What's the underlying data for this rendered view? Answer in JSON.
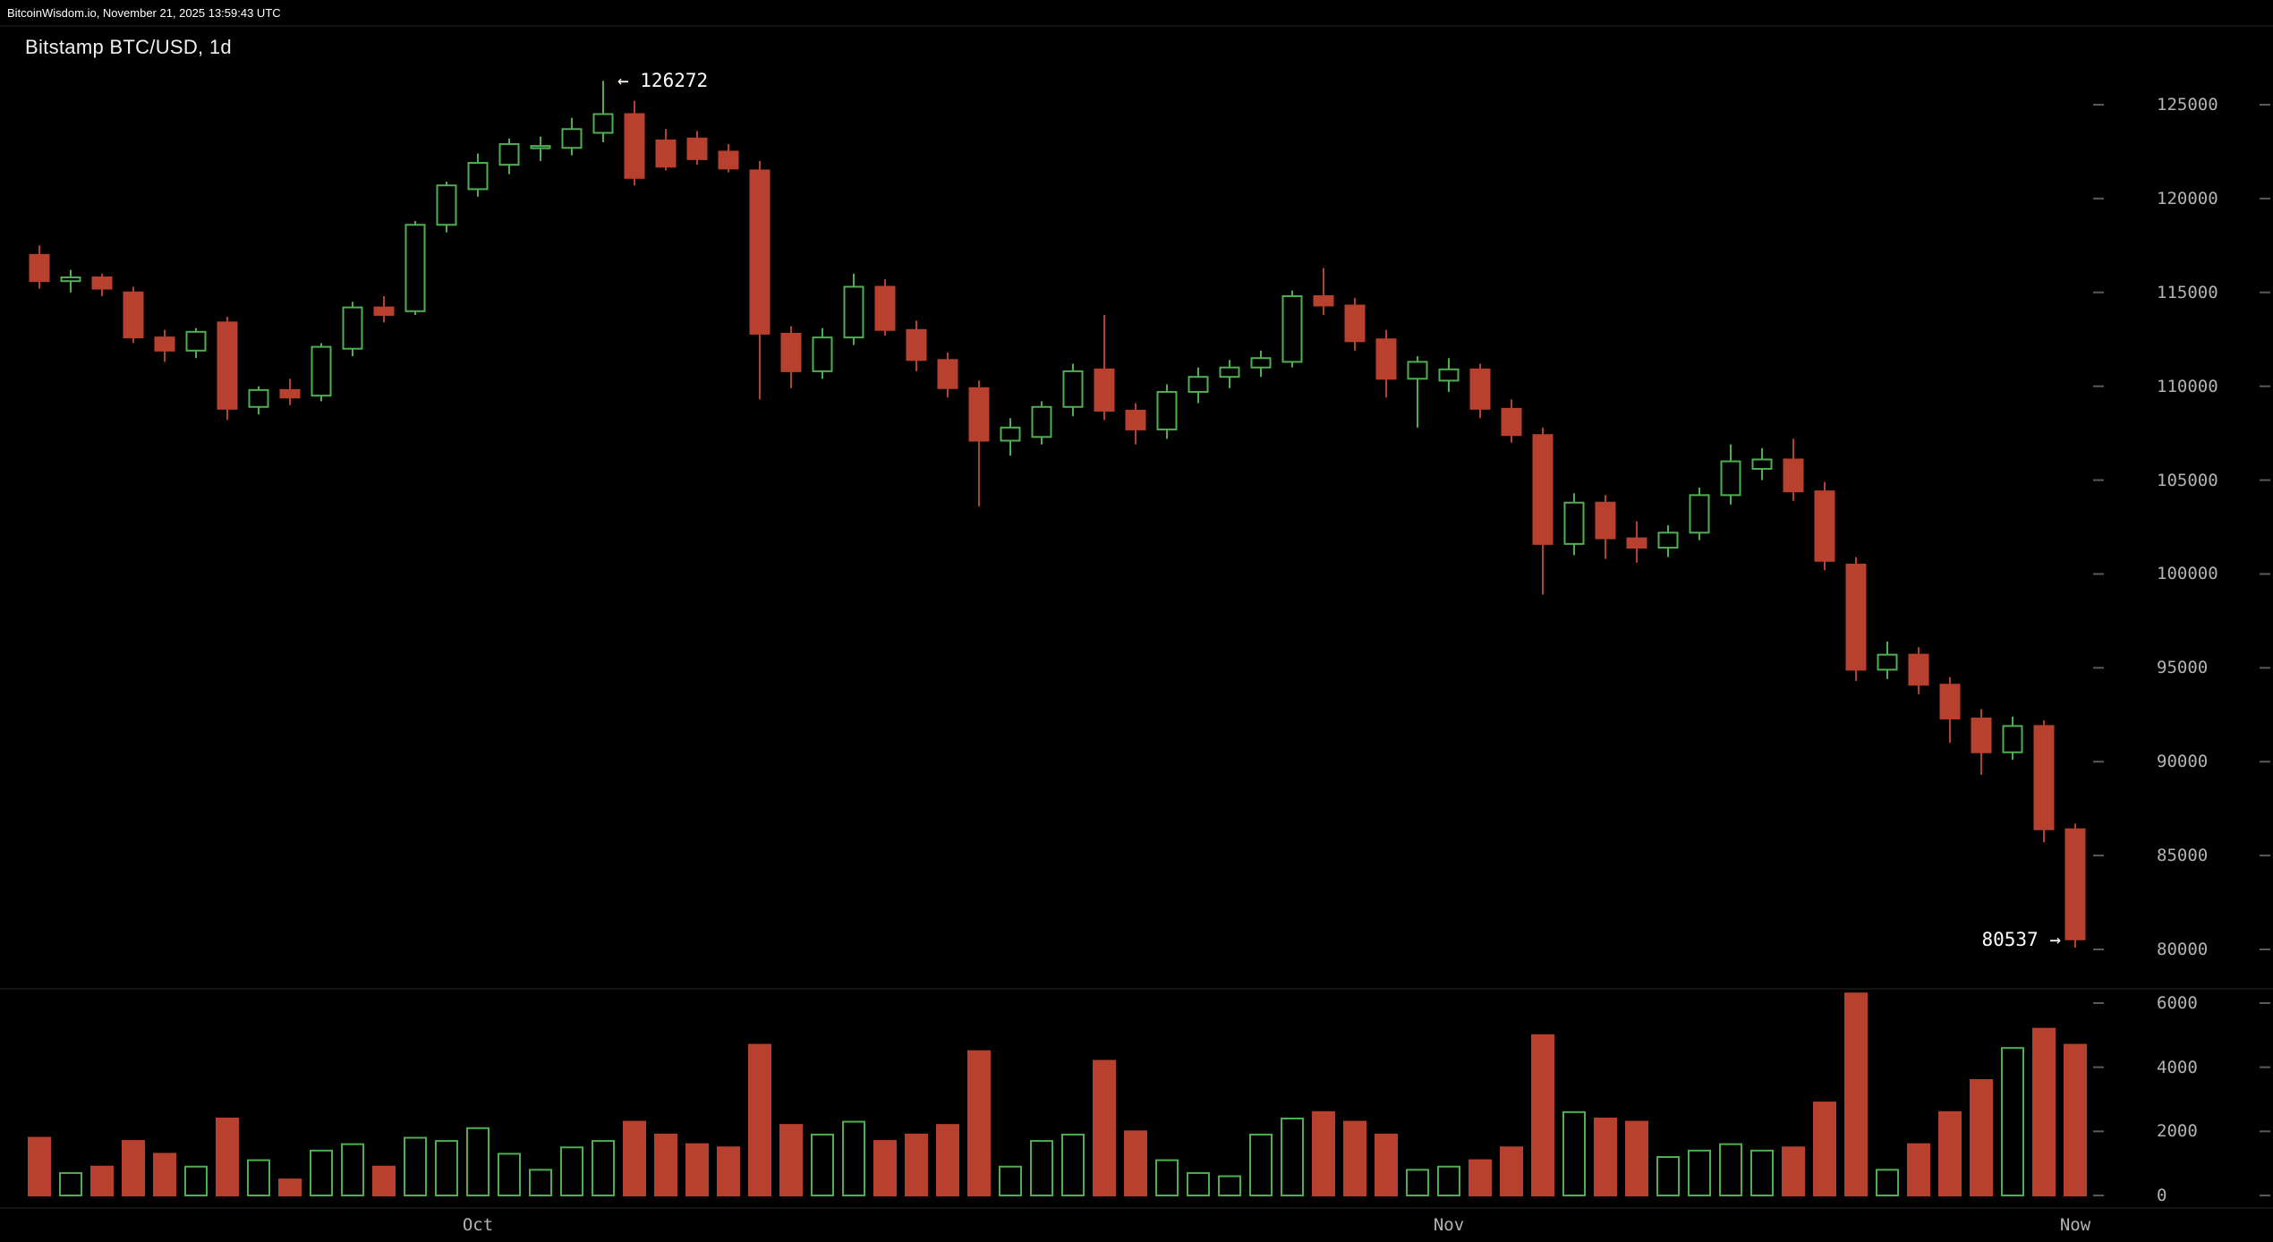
{
  "header": {
    "status_text": "BitcoinWisdom.io, November 21, 2025 13:59:43 UTC"
  },
  "chart_data": {
    "type": "candlestick",
    "title": "Bitstamp BTC/USD, 1d",
    "legend": "none",
    "grid": "off",
    "price_axis": {
      "side": "right",
      "ticks": [
        125000,
        120000,
        115000,
        110000,
        105000,
        100000,
        95000,
        90000,
        85000,
        80000
      ],
      "range": [
        78500,
        127800
      ]
    },
    "volume_axis": {
      "side": "right",
      "ticks": [
        6000,
        4000,
        2000,
        0
      ],
      "range": [
        0,
        6500
      ]
    },
    "x_axis": {
      "labels": [
        "Oct",
        "Nov",
        "Now"
      ],
      "anchor_candle_index": [
        14,
        45,
        65
      ]
    },
    "annotations": {
      "ath_label": "← 126272",
      "ath_price": 126272,
      "current_label": "80537 →",
      "current_price": 80537
    },
    "colors": {
      "up": "#4fae50",
      "down": "#b8402f",
      "background": "#000000",
      "axis_text": "#b3b3b3",
      "title_text": "#f0f0f0",
      "tick_dash": "#5a5a5a",
      "divider": "#262626"
    },
    "columns": [
      "date",
      "open",
      "high",
      "low",
      "close",
      "volume"
    ],
    "candles": [
      [
        "Sep 17",
        117000,
        117500,
        115200,
        115600,
        1800
      ],
      [
        "Sep 18",
        115600,
        116200,
        115000,
        115800,
        700
      ],
      [
        "Sep 19",
        115800,
        116000,
        114800,
        115200,
        900
      ],
      [
        "Sep 20",
        115000,
        115300,
        112300,
        112600,
        1700
      ],
      [
        "Sep 21",
        112600,
        113000,
        111300,
        111900,
        1300
      ],
      [
        "Sep 22",
        111900,
        113100,
        111500,
        112900,
        900
      ],
      [
        "Sep 23",
        113400,
        113700,
        108200,
        108800,
        2400
      ],
      [
        "Sep 24",
        108900,
        110000,
        108500,
        109800,
        1100
      ],
      [
        "Sep 25",
        109800,
        110400,
        109000,
        109400,
        500
      ],
      [
        "Sep 26",
        109500,
        112300,
        109200,
        112100,
        1400
      ],
      [
        "Sep 27",
        112000,
        114500,
        111600,
        114200,
        1600
      ],
      [
        "Sep 28",
        114200,
        114800,
        113400,
        113800,
        900
      ],
      [
        "Sep 29",
        114000,
        118800,
        113800,
        118600,
        1800
      ],
      [
        "Sep 30",
        118600,
        120900,
        118200,
        120700,
        1700
      ],
      [
        "Oct 1",
        120500,
        122400,
        120100,
        121900,
        2100
      ],
      [
        "Oct 2",
        121800,
        123200,
        121300,
        122900,
        1300
      ],
      [
        "Oct 3",
        122700,
        123300,
        122000,
        122800,
        800
      ],
      [
        "Oct 4",
        122700,
        124300,
        122300,
        123700,
        1500
      ],
      [
        "Oct 5",
        123500,
        126272,
        123000,
        124500,
        1700
      ],
      [
        "Oct 6",
        124500,
        125200,
        120700,
        121100,
        2300
      ],
      [
        "Oct 7",
        123100,
        123700,
        121500,
        121700,
        1900
      ],
      [
        "Oct 8",
        123200,
        123600,
        121800,
        122100,
        1600
      ],
      [
        "Oct 9",
        122500,
        122900,
        121400,
        121600,
        1500
      ],
      [
        "Oct 10",
        121500,
        122000,
        109300,
        112800,
        4700
      ],
      [
        "Oct 11",
        112800,
        113200,
        109900,
        110800,
        2200
      ],
      [
        "Oct 12",
        110800,
        113100,
        110400,
        112600,
        1900
      ],
      [
        "Oct 13",
        112600,
        116000,
        112200,
        115300,
        2300
      ],
      [
        "Oct 14",
        115300,
        115700,
        112700,
        113000,
        1700
      ],
      [
        "Oct 15",
        113000,
        113500,
        110800,
        111400,
        1900
      ],
      [
        "Oct 16",
        111400,
        111800,
        109400,
        109900,
        2200
      ],
      [
        "Oct 17",
        109900,
        110300,
        103600,
        107100,
        4500
      ],
      [
        "Oct 18",
        107100,
        108300,
        106300,
        107800,
        900
      ],
      [
        "Oct 19",
        107300,
        109200,
        106900,
        108900,
        1700
      ],
      [
        "Oct 20",
        108900,
        111200,
        108400,
        110800,
        1900
      ],
      [
        "Oct 21",
        110900,
        113800,
        108200,
        108700,
        4200
      ],
      [
        "Oct 22",
        108700,
        109100,
        106900,
        107700,
        2000
      ],
      [
        "Oct 23",
        107700,
        110100,
        107200,
        109700,
        1100
      ],
      [
        "Oct 24",
        109700,
        111000,
        109100,
        110500,
        700
      ],
      [
        "Oct 25",
        110500,
        111400,
        109900,
        111000,
        600
      ],
      [
        "Oct 26",
        111000,
        111900,
        110500,
        111500,
        1900
      ],
      [
        "Oct 27",
        111300,
        115100,
        111000,
        114800,
        2400
      ],
      [
        "Oct 28",
        114800,
        116300,
        113800,
        114300,
        2600
      ],
      [
        "Oct 29",
        114300,
        114700,
        111900,
        112400,
        2300
      ],
      [
        "Oct 30",
        112500,
        113000,
        109400,
        110400,
        1900
      ],
      [
        "Oct 31",
        110400,
        111600,
        107800,
        111300,
        800
      ],
      [
        "Nov 1",
        110300,
        111500,
        109700,
        110900,
        900
      ],
      [
        "Nov 2",
        110900,
        111200,
        108300,
        108800,
        1100
      ],
      [
        "Nov 3",
        108800,
        109300,
        107000,
        107400,
        1500
      ],
      [
        "Nov 4",
        107400,
        107800,
        98900,
        101600,
        5000
      ],
      [
        "Nov 5",
        101600,
        104300,
        101000,
        103800,
        2600
      ],
      [
        "Nov 6",
        103800,
        104200,
        100800,
        101900,
        2400
      ],
      [
        "Nov 7",
        101900,
        102800,
        100600,
        101400,
        2300
      ],
      [
        "Nov 8",
        101400,
        102600,
        100900,
        102200,
        1200
      ],
      [
        "Nov 9",
        102200,
        104600,
        101800,
        104200,
        1400
      ],
      [
        "Nov 10",
        104200,
        106900,
        103700,
        106000,
        1600
      ],
      [
        "Nov 11",
        105600,
        106700,
        105000,
        106100,
        1400
      ],
      [
        "Nov 12",
        106100,
        107200,
        103900,
        104400,
        1500
      ],
      [
        "Nov 13",
        104400,
        104900,
        100200,
        100700,
        2900
      ],
      [
        "Nov 14",
        100500,
        100900,
        94300,
        94900,
        6300
      ],
      [
        "Nov 15",
        94900,
        96400,
        94400,
        95700,
        800
      ],
      [
        "Nov 16",
        95700,
        96100,
        93600,
        94100,
        1600
      ],
      [
        "Nov 17",
        94100,
        94500,
        91000,
        92300,
        2600
      ],
      [
        "Nov 18",
        92300,
        92800,
        89300,
        90500,
        3600
      ],
      [
        "Nov 19",
        90500,
        92400,
        90100,
        91900,
        4600
      ],
      [
        "Nov 20",
        91900,
        92200,
        85700,
        86400,
        5200
      ],
      [
        "Nov 21",
        86400,
        86700,
        80100,
        80537,
        4700
      ]
    ]
  }
}
